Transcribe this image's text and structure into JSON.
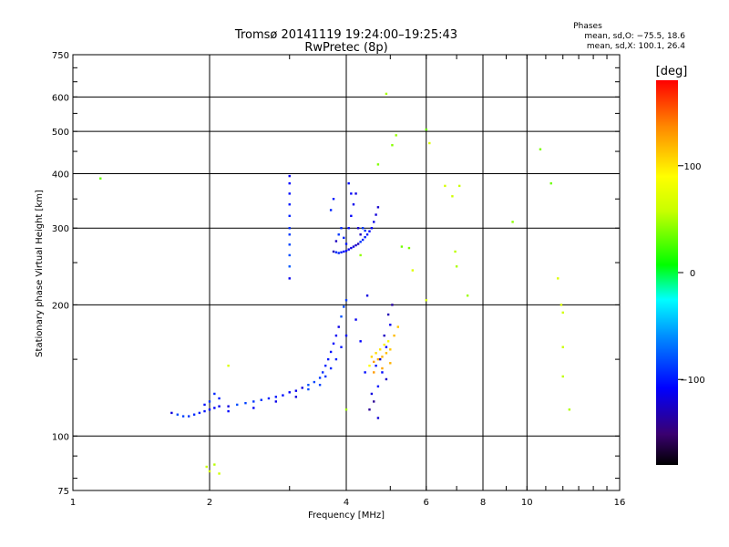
{
  "chart_data": {
    "type": "scatter",
    "title": "Tromsø 20141119 19:24:00–19:25:43",
    "subtitle": "RwPretec (8p)",
    "xlabel": "Frequency [MHz]",
    "ylabel": "Stationary phase Virtual Height [km]",
    "x_scale": "log",
    "y_scale": "log",
    "xlim": [
      1,
      16
    ],
    "ylim": [
      75,
      750
    ],
    "x_ticks": [
      1,
      2,
      4,
      6,
      8,
      10,
      16
    ],
    "x_tick_labels": [
      "1",
      "2",
      "4",
      "6",
      "8",
      "10",
      "16"
    ],
    "x_gridlines": [
      2,
      4,
      6,
      8,
      10
    ],
    "y_ticks": [
      75,
      100,
      200,
      300,
      400,
      500,
      600,
      750
    ],
    "y_tick_labels": [
      "75",
      "100",
      "200",
      "300",
      "400",
      "500",
      "600",
      "750"
    ],
    "y_gridlines": [
      100,
      200,
      300,
      400,
      500,
      600
    ],
    "grid": true,
    "phase_stats": {
      "title": "Phases",
      "line1": "mean, sd,O: −75.5, 18.6",
      "line2": "mean, sd,X: 100.1, 26.4"
    },
    "colorbar": {
      "label": "[deg]",
      "min": -180,
      "max": 180,
      "ticks": [
        100,
        0,
        -100
      ],
      "tick_labels": [
        "100",
        "0",
        "−100"
      ]
    },
    "point_groups": [
      {
        "name": "E region trace",
        "phase": -100,
        "points": [
          [
            1.65,
            113
          ],
          [
            1.7,
            112
          ],
          [
            1.75,
            111
          ],
          [
            1.8,
            111
          ],
          [
            1.85,
            112
          ],
          [
            1.9,
            113
          ],
          [
            1.95,
            114
          ],
          [
            2.0,
            115
          ],
          [
            2.05,
            116
          ],
          [
            2.1,
            117
          ],
          [
            2.2,
            117
          ],
          [
            2.3,
            118
          ],
          [
            2.4,
            119
          ],
          [
            2.5,
            120
          ],
          [
            2.6,
            121
          ],
          [
            2.7,
            122
          ],
          [
            2.8,
            123
          ],
          [
            2.9,
            124
          ],
          [
            3.0,
            126
          ],
          [
            3.1,
            127
          ],
          [
            3.2,
            129
          ],
          [
            3.3,
            131
          ],
          [
            3.4,
            133
          ],
          [
            3.5,
            136
          ],
          [
            3.55,
            140
          ],
          [
            3.6,
            145
          ],
          [
            3.65,
            150
          ],
          [
            3.7,
            156
          ],
          [
            3.75,
            163
          ],
          [
            3.8,
            170
          ],
          [
            3.85,
            178
          ],
          [
            3.9,
            188
          ],
          [
            3.95,
            198
          ],
          [
            4.0,
            205
          ],
          [
            2.0,
            120
          ],
          [
            2.05,
            125
          ],
          [
            2.1,
            122
          ],
          [
            1.95,
            118
          ],
          [
            2.2,
            114
          ],
          [
            2.5,
            116
          ],
          [
            2.8,
            120
          ],
          [
            3.1,
            123
          ],
          [
            3.3,
            128
          ],
          [
            3.5,
            131
          ],
          [
            3.6,
            137
          ],
          [
            3.7,
            143
          ],
          [
            3.8,
            150
          ],
          [
            3.9,
            160
          ],
          [
            4.0,
            170
          ]
        ]
      },
      {
        "name": "F region trace",
        "phase": -110,
        "points": [
          [
            3.75,
            265
          ],
          [
            3.8,
            264
          ],
          [
            3.85,
            263
          ],
          [
            3.9,
            264
          ],
          [
            3.95,
            265
          ],
          [
            4.0,
            266
          ],
          [
            4.05,
            268
          ],
          [
            4.1,
            270
          ],
          [
            4.15,
            272
          ],
          [
            4.2,
            274
          ],
          [
            4.25,
            276
          ],
          [
            4.3,
            279
          ],
          [
            4.35,
            282
          ],
          [
            4.4,
            286
          ],
          [
            4.45,
            290
          ],
          [
            4.5,
            295
          ],
          [
            4.55,
            300
          ],
          [
            4.6,
            310
          ],
          [
            4.65,
            322
          ],
          [
            4.7,
            335
          ],
          [
            3.8,
            280
          ],
          [
            3.85,
            290
          ],
          [
            3.9,
            300
          ],
          [
            3.95,
            285
          ],
          [
            4.0,
            276
          ],
          [
            4.05,
            300
          ],
          [
            4.1,
            320
          ],
          [
            4.15,
            340
          ],
          [
            4.2,
            360
          ],
          [
            4.25,
            300
          ],
          [
            4.3,
            290
          ],
          [
            4.35,
            300
          ],
          [
            4.4,
            296
          ],
          [
            3.7,
            330
          ],
          [
            3.75,
            350
          ],
          [
            4.05,
            380
          ],
          [
            4.1,
            360
          ]
        ]
      },
      {
        "name": "Vertical column at 3.0 MHz",
        "phase": -95,
        "points": [
          [
            3.0,
            230
          ],
          [
            3.0,
            245
          ],
          [
            3.0,
            260
          ],
          [
            3.0,
            275
          ],
          [
            3.0,
            290
          ],
          [
            3.0,
            300
          ],
          [
            3.0,
            320
          ],
          [
            3.0,
            340
          ],
          [
            3.0,
            360
          ],
          [
            3.0,
            380
          ],
          [
            3.0,
            395
          ]
        ]
      },
      {
        "name": "Spread at 4.5–5.0 MHz",
        "phase": -120,
        "points": [
          [
            4.6,
            120
          ],
          [
            4.7,
            130
          ],
          [
            4.8,
            140
          ],
          [
            4.9,
            160
          ],
          [
            5.0,
            180
          ],
          [
            4.55,
            125
          ],
          [
            4.75,
            150
          ],
          [
            4.85,
            170
          ],
          [
            4.95,
            190
          ],
          [
            5.05,
            200
          ],
          [
            4.5,
            115
          ],
          [
            4.65,
            145
          ],
          [
            4.4,
            140
          ],
          [
            4.3,
            165
          ],
          [
            4.2,
            185
          ],
          [
            4.45,
            210
          ],
          [
            4.7,
            110
          ],
          [
            4.9,
            135
          ]
        ]
      },
      {
        "name": "Yellow-orange cluster",
        "phase": 110,
        "points": [
          [
            4.5,
            145
          ],
          [
            4.6,
            148
          ],
          [
            4.7,
            150
          ],
          [
            4.8,
            152
          ],
          [
            4.9,
            155
          ],
          [
            5.0,
            158
          ],
          [
            4.55,
            152
          ],
          [
            4.65,
            155
          ],
          [
            4.75,
            158
          ],
          [
            4.85,
            162
          ],
          [
            4.95,
            165
          ],
          [
            4.6,
            140
          ],
          [
            4.8,
            143
          ],
          [
            5.0,
            147
          ],
          [
            5.1,
            170
          ],
          [
            5.2,
            178
          ]
        ]
      },
      {
        "name": "Scattered points",
        "phase": 50,
        "points": [
          [
            1.15,
            390
          ],
          [
            2.2,
            145
          ],
          [
            2.0,
            83
          ],
          [
            2.1,
            82
          ],
          [
            1.97,
            85
          ],
          [
            2.05,
            86
          ],
          [
            4.9,
            610
          ],
          [
            5.15,
            490
          ],
          [
            5.05,
            465
          ],
          [
            5.5,
            270
          ],
          [
            6.0,
            505
          ],
          [
            6.1,
            470
          ],
          [
            6.6,
            375
          ],
          [
            6.85,
            355
          ],
          [
            7.1,
            375
          ],
          [
            6.95,
            265
          ],
          [
            7.0,
            245
          ],
          [
            7.4,
            210
          ],
          [
            9.3,
            310
          ],
          [
            10.7,
            455
          ],
          [
            11.3,
            380
          ],
          [
            11.7,
            230
          ],
          [
            11.9,
            200
          ],
          [
            12.0,
            192
          ],
          [
            12.0,
            160
          ],
          [
            12.0,
            137
          ],
          [
            12.4,
            115
          ],
          [
            4.0,
            115
          ],
          [
            4.3,
            260
          ],
          [
            4.7,
            420
          ],
          [
            5.3,
            272
          ],
          [
            5.6,
            240
          ],
          [
            6.0,
            205
          ]
        ]
      }
    ]
  }
}
